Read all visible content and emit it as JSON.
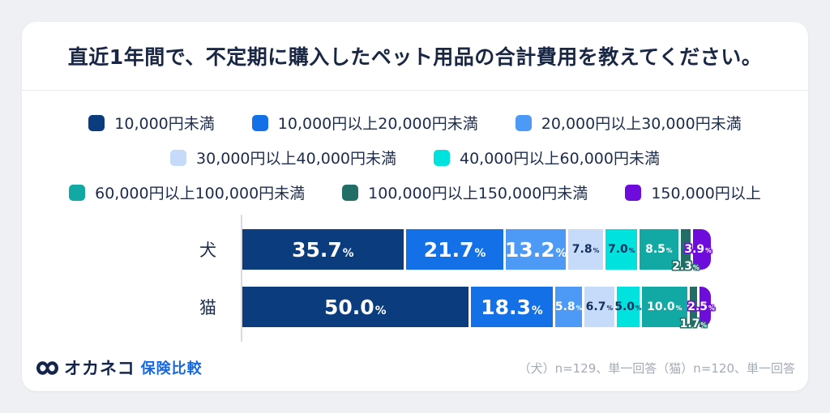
{
  "header": {
    "title": "直近1年間で、不定期に購入したペット用品の合計費用を教えてください。"
  },
  "footer": {
    "brand_name": "オカネコ",
    "brand_suffix": "保険比較",
    "note": "（犬）n=129、単一回答（猫）n=120、単一回答"
  },
  "colors": {
    "page_bg": "#eef0f3",
    "card_bg": "#ffffff",
    "title_text": "#1a2744",
    "legend_text": "#1d2c4c",
    "axis": "#d8dce2",
    "note_text": "#a3abb6",
    "brand_navy": "#14254c",
    "brand_blue": "#1568e0",
    "dark_value_text": "#15305e"
  },
  "chart_data": {
    "type": "bar",
    "stacked": true,
    "orientation": "horizontal",
    "value_unit": "%",
    "title": "直近1年間で、不定期に購入したペット用品の合計費用を教えてください。",
    "legend_position": "top",
    "grid": false,
    "x_axis": "hidden",
    "xlim": [
      0,
      100
    ],
    "segments": [
      {
        "label": "10,000円未満",
        "color": "#0B3C7E"
      },
      {
        "label": "10,000円以上20,000円未満",
        "color": "#1470E6"
      },
      {
        "label": "20,000円以上30,000円未満",
        "color": "#4D9AF6"
      },
      {
        "label": "30,000円以上40,000円未満",
        "color": "#C6DBF9"
      },
      {
        "label": "40,000円以上60,000円未満",
        "color": "#00E2DE"
      },
      {
        "label": "60,000円以上100,000円未満",
        "color": "#12A9A4"
      },
      {
        "label": "100,000円以上150,000円未満",
        "color": "#216E66"
      },
      {
        "label": "150,000円以上",
        "color": "#6E0CDB"
      }
    ],
    "legend_rows": [
      [
        0,
        1,
        2
      ],
      [
        3,
        4
      ],
      [
        5,
        6,
        7
      ]
    ],
    "categories": [
      "犬",
      "猫"
    ],
    "rows": [
      {
        "category": "犬",
        "n": 129,
        "values": [
          35.7,
          21.7,
          13.2,
          7.8,
          7.0,
          8.5,
          2.3,
          3.9
        ],
        "label_styles": [
          "lg-light",
          "lg-light",
          "lg-light",
          "sm-dark",
          "sm-dark",
          "sm-light",
          "ov-low",
          "ov-mid"
        ]
      },
      {
        "category": "猫",
        "n": 120,
        "values": [
          50.0,
          18.3,
          5.8,
          6.7,
          5.0,
          10.0,
          1.7,
          2.5
        ],
        "label_styles": [
          "lg-light",
          "lg-light",
          "sm-light",
          "sm-dark",
          "sm-dark",
          "sm-light",
          "ov-low",
          "ov-mid"
        ]
      }
    ]
  }
}
